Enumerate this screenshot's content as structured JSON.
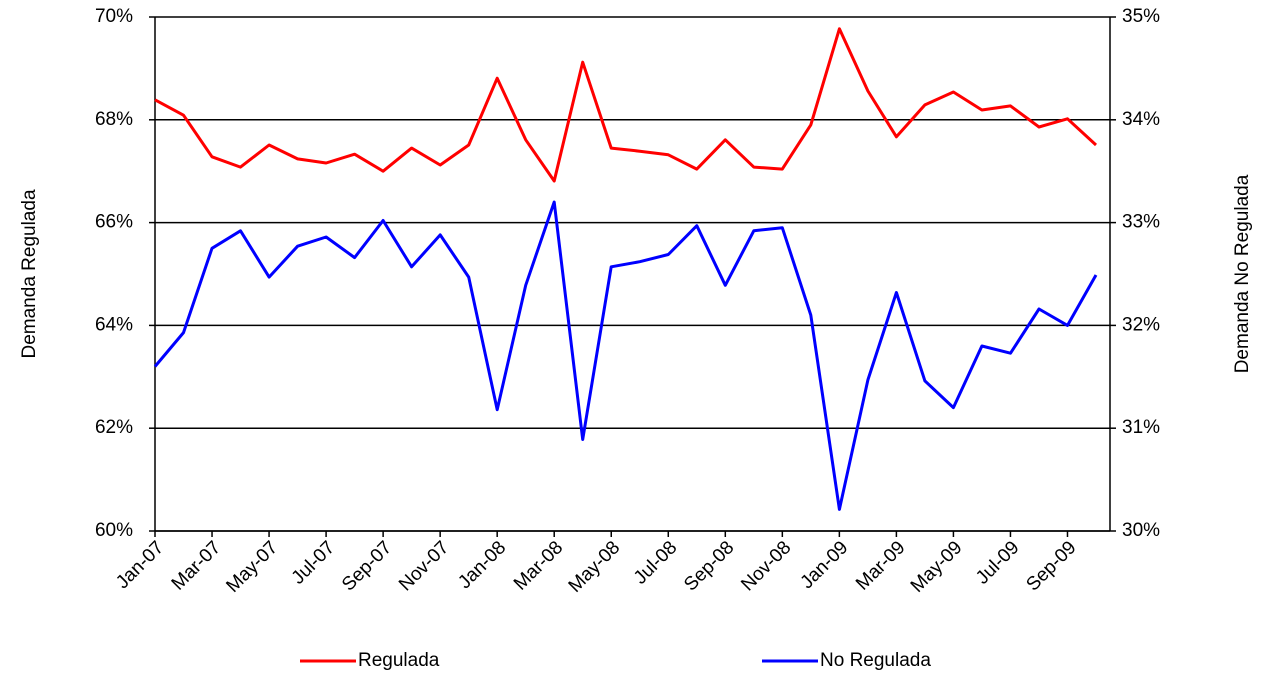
{
  "chart_data": {
    "type": "line",
    "categories": [
      "Jan-07",
      null,
      "Mar-07",
      null,
      "May-07",
      null,
      "Jul-07",
      null,
      "Sep-07",
      null,
      "Nov-07",
      null,
      "Jan-08",
      null,
      "Mar-08",
      null,
      "May-08",
      null,
      "Jul-08",
      null,
      "Sep-08",
      null,
      "Nov-08",
      null,
      "Jan-09",
      null,
      "Mar-09",
      null,
      "May-09",
      null,
      "Jul-09",
      null,
      "Sep-09",
      null
    ],
    "y_label": "Demanda Regulada",
    "y2_label": "Demanda No Regulada",
    "ylim": [
      60,
      70
    ],
    "yticks": [
      {
        "value": 60,
        "label": "60%"
      },
      {
        "value": 62,
        "label": "62%"
      },
      {
        "value": 64,
        "label": "64%"
      },
      {
        "value": 66,
        "label": "66%"
      },
      {
        "value": 68,
        "label": "68%"
      },
      {
        "value": 70,
        "label": "70%"
      }
    ],
    "y2lim": [
      30,
      35
    ],
    "y2ticks": [
      {
        "value": 30,
        "label": "30%"
      },
      {
        "value": 31,
        "label": "31%"
      },
      {
        "value": 32,
        "label": "32%"
      },
      {
        "value": 33,
        "label": "33%"
      },
      {
        "value": 34,
        "label": "34%"
      },
      {
        "value": 35,
        "label": "35%"
      }
    ],
    "grid": true,
    "legend": "bottom",
    "series": [
      {
        "name": "Regulada",
        "color": "#ff0000",
        "values": [
          68.39,
          68.09,
          67.28,
          67.08,
          67.51,
          67.24,
          67.16,
          67.33,
          67.0,
          67.45,
          67.12,
          67.51,
          68.81,
          67.61,
          66.81,
          69.12,
          67.45,
          67.39,
          67.32,
          67.04,
          67.61,
          67.08,
          67.04,
          67.9,
          69.77,
          68.56,
          67.67,
          68.29,
          68.54,
          68.19,
          68.27,
          67.86,
          68.02,
          67.51
        ]
      },
      {
        "name": "No Regulada",
        "color": "#0000ff",
        "axis": "y2",
        "values": [
          31.6,
          31.93,
          32.75,
          32.92,
          32.47,
          32.77,
          32.86,
          32.66,
          33.02,
          32.57,
          32.88,
          32.47,
          31.18,
          32.39,
          33.2,
          30.89,
          32.57,
          32.62,
          32.69,
          32.97,
          32.39,
          32.92,
          32.95,
          32.1,
          30.21,
          31.47,
          32.32,
          31.46,
          31.2,
          31.8,
          31.73,
          32.16,
          32.0,
          32.49
        ]
      }
    ]
  }
}
